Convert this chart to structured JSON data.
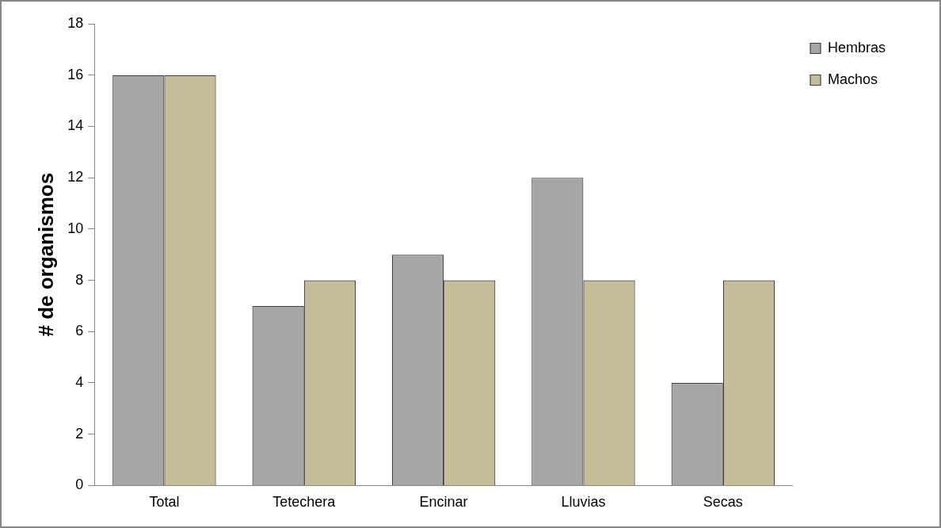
{
  "chart_data": {
    "type": "bar",
    "ylabel": "# de organismos",
    "categories": [
      "Total",
      "Tetechera",
      "Encinar",
      "Lluvias",
      "Secas"
    ],
    "series": [
      {
        "name": "Hembras",
        "color": "#a6a6a6",
        "values": [
          16,
          7,
          9,
          12,
          4
        ]
      },
      {
        "name": "Machos",
        "color": "#c4bd97",
        "values": [
          16,
          8,
          8,
          8,
          8
        ]
      }
    ],
    "ylim": [
      0,
      18
    ],
    "yticks": [
      0,
      2,
      4,
      6,
      8,
      10,
      12,
      14,
      16,
      18
    ],
    "legend": "right"
  }
}
